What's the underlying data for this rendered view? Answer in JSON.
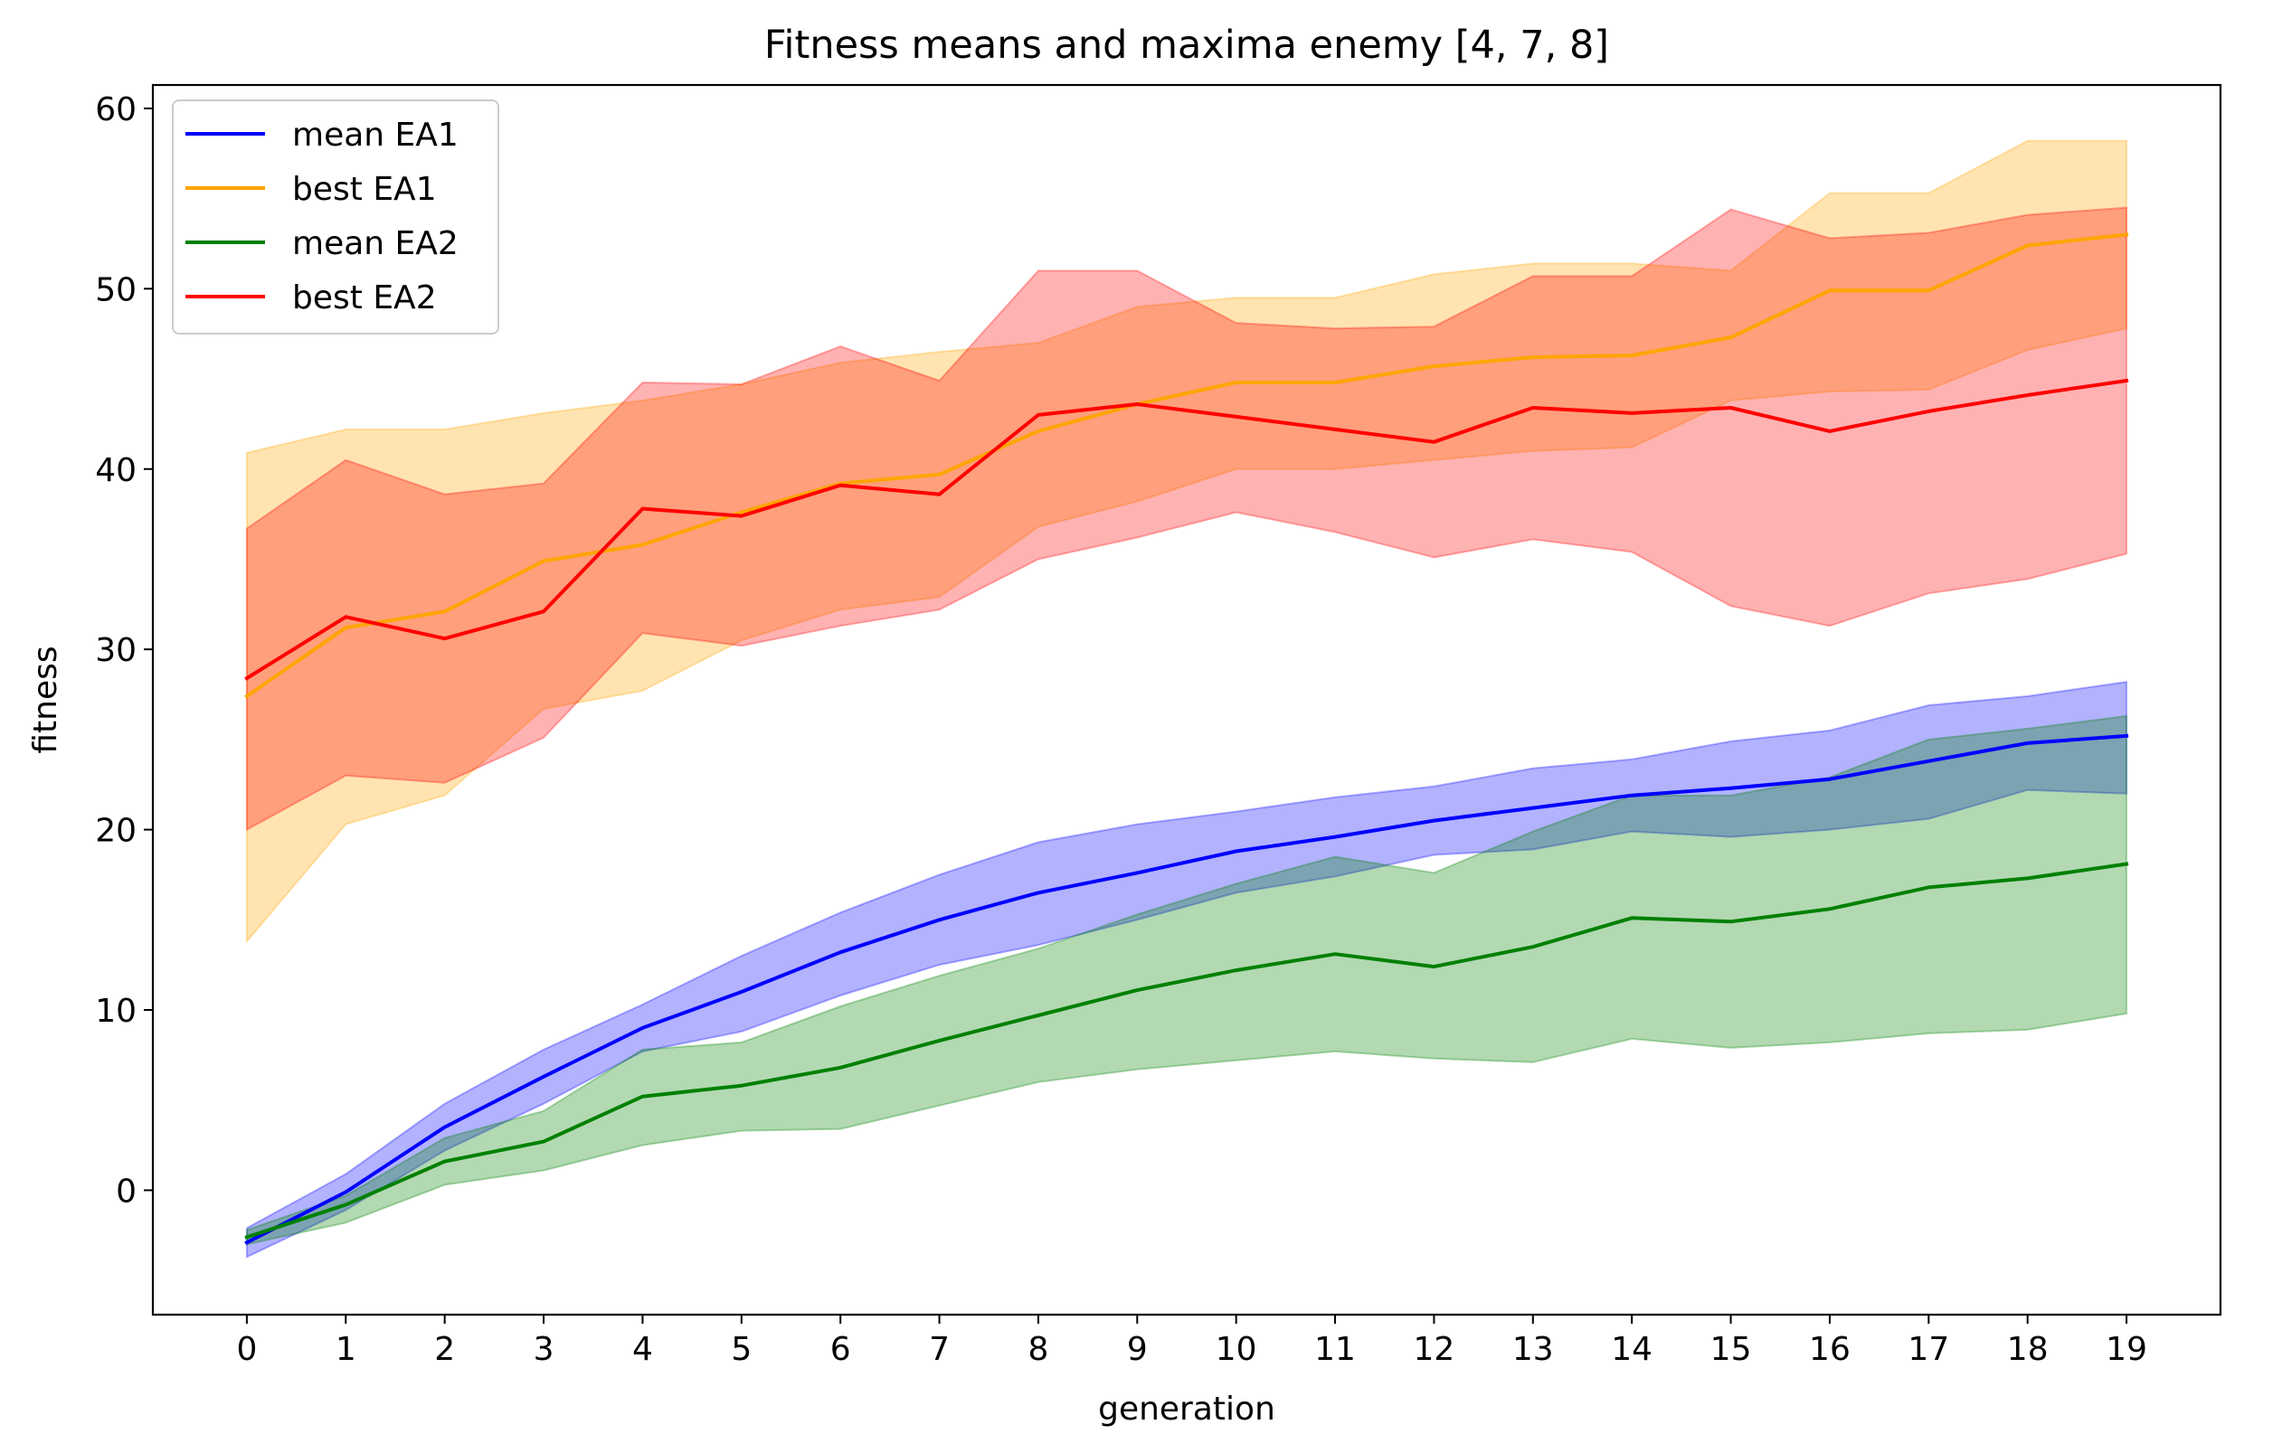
{
  "chart_data": {
    "type": "line",
    "title": "Fitness means and maxima enemy [4, 7, 8]",
    "xlabel": "generation",
    "ylabel": "fitness",
    "xlim": [
      -0.95,
      19.95
    ],
    "ylim": [
      -6.9,
      61.3
    ],
    "x": [
      0,
      1,
      2,
      3,
      4,
      5,
      6,
      7,
      8,
      9,
      10,
      11,
      12,
      13,
      14,
      15,
      16,
      17,
      18,
      19
    ],
    "x_ticks": [
      "0",
      "1",
      "2",
      "3",
      "4",
      "5",
      "6",
      "7",
      "8",
      "9",
      "10",
      "11",
      "12",
      "13",
      "14",
      "15",
      "16",
      "17",
      "18",
      "19"
    ],
    "y_ticks": [
      0,
      10,
      20,
      30,
      40,
      50,
      60
    ],
    "y_tick_labels": [
      "0",
      "10",
      "20",
      "30",
      "40",
      "50",
      "60"
    ],
    "grid": false,
    "legend_position": "top-left",
    "series": [
      {
        "name": "mean EA1",
        "color": "#0000ff",
        "values": [
          -2.9,
          -0.1,
          3.5,
          6.3,
          9.0,
          11.0,
          13.2,
          15.0,
          16.5,
          17.6,
          18.8,
          19.6,
          20.5,
          21.2,
          21.9,
          22.3,
          22.8,
          23.8,
          24.8,
          25.2
        ],
        "band_upper": [
          -2.1,
          0.9,
          4.8,
          7.8,
          10.3,
          13.0,
          15.4,
          17.5,
          19.3,
          20.3,
          21.0,
          21.8,
          22.4,
          23.4,
          23.9,
          24.9,
          25.5,
          26.9,
          27.4,
          28.2
        ],
        "band_lower": [
          -3.7,
          -1.1,
          2.2,
          4.8,
          7.7,
          8.8,
          10.8,
          12.5,
          13.6,
          15.0,
          16.5,
          17.4,
          18.6,
          18.9,
          19.9,
          19.6,
          20.0,
          20.6,
          22.2,
          22.0
        ]
      },
      {
        "name": "best EA1",
        "color": "#ffa500",
        "values": [
          27.4,
          31.2,
          32.1,
          34.9,
          35.8,
          37.6,
          39.2,
          39.7,
          42.1,
          43.6,
          44.8,
          44.8,
          45.7,
          46.2,
          46.3,
          47.3,
          49.9,
          49.9,
          52.4,
          53.0
        ],
        "band_upper": [
          40.9,
          42.2,
          42.2,
          43.1,
          43.8,
          44.7,
          45.9,
          46.5,
          47.0,
          49.0,
          49.5,
          49.5,
          50.8,
          51.4,
          51.4,
          51.0,
          55.3,
          55.3,
          58.2,
          58.2
        ],
        "band_lower": [
          13.8,
          20.3,
          21.9,
          26.7,
          27.7,
          30.5,
          32.2,
          32.9,
          36.8,
          38.2,
          40.0,
          40.0,
          40.5,
          41.0,
          41.2,
          43.8,
          44.3,
          44.4,
          46.6,
          47.8
        ]
      },
      {
        "name": "mean EA2",
        "color": "#008000",
        "values": [
          -2.6,
          -0.8,
          1.6,
          2.7,
          5.2,
          5.8,
          6.8,
          8.3,
          9.7,
          11.1,
          12.2,
          13.1,
          12.4,
          13.5,
          15.1,
          14.9,
          15.6,
          16.8,
          17.3,
          18.1
        ],
        "band_upper": [
          -2.2,
          -0.3,
          2.9,
          4.4,
          7.8,
          8.2,
          10.2,
          11.9,
          13.4,
          15.3,
          17.0,
          18.5,
          17.6,
          19.9,
          21.9,
          21.9,
          22.9,
          25.0,
          25.6,
          26.3
        ],
        "band_lower": [
          -3.0,
          -1.8,
          0.3,
          1.1,
          2.5,
          3.3,
          3.4,
          4.7,
          6.0,
          6.7,
          7.2,
          7.7,
          7.3,
          7.1,
          8.4,
          7.9,
          8.2,
          8.7,
          8.9,
          9.8
        ]
      },
      {
        "name": "best EA2",
        "color": "#ff0000",
        "values": [
          28.4,
          31.8,
          30.6,
          32.1,
          37.8,
          37.4,
          39.1,
          38.6,
          43.0,
          43.6,
          42.9,
          42.2,
          41.5,
          43.4,
          43.1,
          43.4,
          42.1,
          43.2,
          44.1,
          44.9
        ],
        "band_upper": [
          36.7,
          40.5,
          38.6,
          39.2,
          44.8,
          44.7,
          46.8,
          44.9,
          51.0,
          51.0,
          48.1,
          47.8,
          47.9,
          50.7,
          50.7,
          54.4,
          52.8,
          53.1,
          54.1,
          54.5
        ],
        "band_lower": [
          20.0,
          23.0,
          22.6,
          25.1,
          30.9,
          30.2,
          31.3,
          32.2,
          35.0,
          36.2,
          37.6,
          36.5,
          35.1,
          36.1,
          35.4,
          32.4,
          31.3,
          33.1,
          33.9,
          35.3
        ]
      }
    ]
  }
}
